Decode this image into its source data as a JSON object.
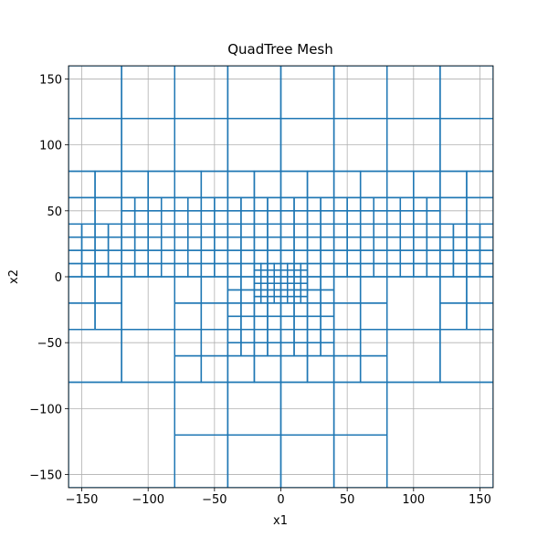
{
  "chart_data": {
    "type": "mesh",
    "title": "QuadTree Mesh",
    "xlabel": "x1",
    "ylabel": "x2",
    "color": "#1f77b4",
    "grid": true,
    "xlim": [
      -160,
      160
    ],
    "ylim": [
      -160,
      160
    ],
    "xticks": [
      {
        "value": -150,
        "label": "−150"
      },
      {
        "value": -100,
        "label": "−100"
      },
      {
        "value": -50,
        "label": "−50"
      },
      0,
      50,
      100,
      150
    ],
    "yticks": [
      {
        "value": -150,
        "label": "−150"
      },
      {
        "value": -100,
        "label": "−100"
      },
      {
        "value": -50,
        "label": "−50"
      },
      0,
      50,
      100,
      150
    ],
    "cells": [
      [
        -160,
        120,
        40
      ],
      [
        -120,
        120,
        40
      ],
      [
        -80,
        120,
        40
      ],
      [
        -40,
        120,
        40
      ],
      [
        0,
        120,
        40
      ],
      [
        40,
        120,
        40
      ],
      [
        80,
        120,
        40
      ],
      [
        120,
        120,
        40
      ],
      [
        -160,
        80,
        40
      ],
      [
        -120,
        80,
        40
      ],
      [
        -80,
        80,
        40
      ],
      [
        -40,
        80,
        40
      ],
      [
        0,
        80,
        40
      ],
      [
        40,
        80,
        40
      ],
      [
        80,
        80,
        40
      ],
      [
        120,
        80,
        40
      ],
      [
        -160,
        60,
        20
      ],
      [
        -140,
        60,
        20
      ],
      [
        -120,
        60,
        20
      ],
      [
        -100,
        60,
        20
      ],
      [
        -80,
        60,
        20
      ],
      [
        -60,
        60,
        20
      ],
      [
        -40,
        60,
        20
      ],
      [
        -20,
        60,
        20
      ],
      [
        0,
        60,
        20
      ],
      [
        20,
        60,
        20
      ],
      [
        40,
        60,
        20
      ],
      [
        60,
        60,
        20
      ],
      [
        80,
        60,
        20
      ],
      [
        100,
        60,
        20
      ],
      [
        120,
        60,
        20
      ],
      [
        140,
        60,
        20
      ],
      [
        -160,
        40,
        20
      ],
      [
        -140,
        40,
        20
      ],
      [
        120,
        40,
        20
      ],
      [
        140,
        40,
        20
      ],
      [
        -120,
        50,
        10
      ],
      [
        -110,
        50,
        10
      ],
      [
        -100,
        50,
        10
      ],
      [
        -90,
        50,
        10
      ],
      [
        -80,
        50,
        10
      ],
      [
        -70,
        50,
        10
      ],
      [
        -60,
        50,
        10
      ],
      [
        -50,
        50,
        10
      ],
      [
        -40,
        50,
        10
      ],
      [
        -30,
        50,
        10
      ],
      [
        -20,
        50,
        10
      ],
      [
        -10,
        50,
        10
      ],
      [
        0,
        50,
        10
      ],
      [
        10,
        50,
        10
      ],
      [
        20,
        50,
        10
      ],
      [
        30,
        50,
        10
      ],
      [
        40,
        50,
        10
      ],
      [
        50,
        50,
        10
      ],
      [
        60,
        50,
        10
      ],
      [
        70,
        50,
        10
      ],
      [
        80,
        50,
        10
      ],
      [
        90,
        50,
        10
      ],
      [
        100,
        50,
        10
      ],
      [
        110,
        50,
        10
      ],
      [
        -120,
        40,
        10
      ],
      [
        -110,
        40,
        10
      ],
      [
        -100,
        40,
        10
      ],
      [
        -90,
        40,
        10
      ],
      [
        -80,
        40,
        10
      ],
      [
        -70,
        40,
        10
      ],
      [
        -60,
        40,
        10
      ],
      [
        -50,
        40,
        10
      ],
      [
        -40,
        40,
        10
      ],
      [
        -30,
        40,
        10
      ],
      [
        -20,
        40,
        10
      ],
      [
        -10,
        40,
        10
      ],
      [
        0,
        40,
        10
      ],
      [
        10,
        40,
        10
      ],
      [
        20,
        40,
        10
      ],
      [
        30,
        40,
        10
      ],
      [
        40,
        40,
        10
      ],
      [
        50,
        40,
        10
      ],
      [
        60,
        40,
        10
      ],
      [
        70,
        40,
        10
      ],
      [
        80,
        40,
        10
      ],
      [
        90,
        40,
        10
      ],
      [
        100,
        40,
        10
      ],
      [
        110,
        40,
        10
      ],
      [
        -160,
        30,
        10
      ],
      [
        -150,
        30,
        10
      ],
      [
        -140,
        30,
        10
      ],
      [
        -130,
        30,
        10
      ],
      [
        -120,
        30,
        10
      ],
      [
        -110,
        30,
        10
      ],
      [
        -100,
        30,
        10
      ],
      [
        -90,
        30,
        10
      ],
      [
        -80,
        30,
        10
      ],
      [
        -70,
        30,
        10
      ],
      [
        -60,
        30,
        10
      ],
      [
        -50,
        30,
        10
      ],
      [
        -40,
        30,
        10
      ],
      [
        -30,
        30,
        10
      ],
      [
        -20,
        30,
        10
      ],
      [
        -10,
        30,
        10
      ],
      [
        0,
        30,
        10
      ],
      [
        10,
        30,
        10
      ],
      [
        20,
        30,
        10
      ],
      [
        30,
        30,
        10
      ],
      [
        40,
        30,
        10
      ],
      [
        50,
        30,
        10
      ],
      [
        60,
        30,
        10
      ],
      [
        70,
        30,
        10
      ],
      [
        80,
        30,
        10
      ],
      [
        90,
        30,
        10
      ],
      [
        100,
        30,
        10
      ],
      [
        110,
        30,
        10
      ],
      [
        120,
        30,
        10
      ],
      [
        130,
        30,
        10
      ],
      [
        140,
        30,
        10
      ],
      [
        150,
        30,
        10
      ],
      [
        -160,
        20,
        10
      ],
      [
        -150,
        20,
        10
      ],
      [
        -140,
        20,
        10
      ],
      [
        -130,
        20,
        10
      ],
      [
        -120,
        20,
        10
      ],
      [
        -110,
        20,
        10
      ],
      [
        -100,
        20,
        10
      ],
      [
        -90,
        20,
        10
      ],
      [
        -80,
        20,
        10
      ],
      [
        -70,
        20,
        10
      ],
      [
        -60,
        20,
        10
      ],
      [
        -50,
        20,
        10
      ],
      [
        -40,
        20,
        10
      ],
      [
        -30,
        20,
        10
      ],
      [
        -20,
        20,
        10
      ],
      [
        -10,
        20,
        10
      ],
      [
        0,
        20,
        10
      ],
      [
        10,
        20,
        10
      ],
      [
        20,
        20,
        10
      ],
      [
        30,
        20,
        10
      ],
      [
        40,
        20,
        10
      ],
      [
        50,
        20,
        10
      ],
      [
        60,
        20,
        10
      ],
      [
        70,
        20,
        10
      ],
      [
        80,
        20,
        10
      ],
      [
        90,
        20,
        10
      ],
      [
        100,
        20,
        10
      ],
      [
        110,
        20,
        10
      ],
      [
        120,
        20,
        10
      ],
      [
        130,
        20,
        10
      ],
      [
        140,
        20,
        10
      ],
      [
        150,
        20,
        10
      ],
      [
        -160,
        10,
        10
      ],
      [
        -150,
        10,
        10
      ],
      [
        -140,
        10,
        10
      ],
      [
        -130,
        10,
        10
      ],
      [
        -120,
        10,
        10
      ],
      [
        -110,
        10,
        10
      ],
      [
        -100,
        10,
        10
      ],
      [
        -90,
        10,
        10
      ],
      [
        -80,
        10,
        10
      ],
      [
        -70,
        10,
        10
      ],
      [
        -60,
        10,
        10
      ],
      [
        -50,
        10,
        10
      ],
      [
        -40,
        10,
        10
      ],
      [
        -30,
        10,
        10
      ],
      [
        -20,
        10,
        10
      ],
      [
        -10,
        10,
        10
      ],
      [
        0,
        10,
        10
      ],
      [
        10,
        10,
        10
      ],
      [
        20,
        10,
        10
      ],
      [
        30,
        10,
        10
      ],
      [
        40,
        10,
        10
      ],
      [
        50,
        10,
        10
      ],
      [
        60,
        10,
        10
      ],
      [
        70,
        10,
        10
      ],
      [
        80,
        10,
        10
      ],
      [
        90,
        10,
        10
      ],
      [
        100,
        10,
        10
      ],
      [
        110,
        10,
        10
      ],
      [
        120,
        10,
        10
      ],
      [
        130,
        10,
        10
      ],
      [
        140,
        10,
        10
      ],
      [
        150,
        10,
        10
      ],
      [
        -160,
        0,
        10
      ],
      [
        -150,
        0,
        10
      ],
      [
        -140,
        0,
        10
      ],
      [
        -130,
        0,
        10
      ],
      [
        -120,
        0,
        10
      ],
      [
        -110,
        0,
        10
      ],
      [
        -100,
        0,
        10
      ],
      [
        -90,
        0,
        10
      ],
      [
        -80,
        0,
        10
      ],
      [
        -70,
        0,
        10
      ],
      [
        -60,
        0,
        10
      ],
      [
        -50,
        0,
        10
      ],
      [
        -40,
        0,
        10
      ],
      [
        -30,
        0,
        10
      ],
      [
        20,
        0,
        10
      ],
      [
        30,
        0,
        10
      ],
      [
        40,
        0,
        10
      ],
      [
        50,
        0,
        10
      ],
      [
        60,
        0,
        10
      ],
      [
        70,
        0,
        10
      ],
      [
        80,
        0,
        10
      ],
      [
        90,
        0,
        10
      ],
      [
        100,
        0,
        10
      ],
      [
        110,
        0,
        10
      ],
      [
        120,
        0,
        10
      ],
      [
        130,
        0,
        10
      ],
      [
        140,
        0,
        10
      ],
      [
        150,
        0,
        10
      ],
      [
        -20,
        5,
        5
      ],
      [
        -15,
        5,
        5
      ],
      [
        -10,
        5,
        5
      ],
      [
        -5,
        5,
        5
      ],
      [
        0,
        5,
        5
      ],
      [
        5,
        5,
        5
      ],
      [
        10,
        5,
        5
      ],
      [
        15,
        5,
        5
      ],
      [
        -20,
        0,
        5
      ],
      [
        -15,
        0,
        5
      ],
      [
        -10,
        0,
        5
      ],
      [
        -5,
        0,
        5
      ],
      [
        0,
        0,
        5
      ],
      [
        5,
        0,
        5
      ],
      [
        10,
        0,
        5
      ],
      [
        15,
        0,
        5
      ],
      [
        -160,
        -40,
        20
      ],
      [
        -140,
        -40,
        20
      ],
      [
        -160,
        -20,
        20
      ],
      [
        -140,
        -20,
        20
      ],
      [
        -120,
        -40,
        40
      ],
      [
        80,
        -40,
        40
      ],
      [
        120,
        -40,
        20
      ],
      [
        140,
        -40,
        20
      ],
      [
        120,
        -20,
        20
      ],
      [
        140,
        -20,
        20
      ],
      [
        -80,
        -40,
        20
      ],
      [
        -60,
        -40,
        20
      ],
      [
        40,
        -40,
        20
      ],
      [
        60,
        -40,
        20
      ],
      [
        -80,
        -20,
        20
      ],
      [
        -60,
        -20,
        20
      ],
      [
        40,
        -20,
        20
      ],
      [
        60,
        -20,
        20
      ],
      [
        -40,
        -40,
        10
      ],
      [
        -30,
        -40,
        10
      ],
      [
        20,
        -40,
        10
      ],
      [
        30,
        -40,
        10
      ],
      [
        -40,
        -30,
        10
      ],
      [
        -30,
        -30,
        10
      ],
      [
        20,
        -30,
        10
      ],
      [
        30,
        -30,
        10
      ],
      [
        -40,
        -20,
        10
      ],
      [
        -30,
        -20,
        10
      ],
      [
        20,
        -20,
        10
      ],
      [
        30,
        -20,
        10
      ],
      [
        -40,
        -10,
        10
      ],
      [
        -30,
        -10,
        10
      ],
      [
        20,
        -10,
        10
      ],
      [
        30,
        -10,
        10
      ],
      [
        -20,
        -40,
        10
      ],
      [
        -10,
        -40,
        10
      ],
      [
        0,
        -40,
        10
      ],
      [
        10,
        -40,
        10
      ],
      [
        -20,
        -30,
        10
      ],
      [
        -10,
        -30,
        10
      ],
      [
        0,
        -30,
        10
      ],
      [
        10,
        -30,
        10
      ],
      [
        -20,
        -20,
        5
      ],
      [
        -15,
        -20,
        5
      ],
      [
        -10,
        -20,
        5
      ],
      [
        -5,
        -20,
        5
      ],
      [
        0,
        -20,
        5
      ],
      [
        5,
        -20,
        5
      ],
      [
        10,
        -20,
        5
      ],
      [
        15,
        -20,
        5
      ],
      [
        -20,
        -15,
        5
      ],
      [
        -15,
        -15,
        5
      ],
      [
        -10,
        -15,
        5
      ],
      [
        -5,
        -15,
        5
      ],
      [
        0,
        -15,
        5
      ],
      [
        5,
        -15,
        5
      ],
      [
        10,
        -15,
        5
      ],
      [
        15,
        -15,
        5
      ],
      [
        -20,
        -10,
        5
      ],
      [
        -15,
        -10,
        5
      ],
      [
        -10,
        -10,
        5
      ],
      [
        -5,
        -10,
        5
      ],
      [
        0,
        -10,
        5
      ],
      [
        5,
        -10,
        5
      ],
      [
        10,
        -10,
        5
      ],
      [
        15,
        -10,
        5
      ],
      [
        -20,
        -5,
        5
      ],
      [
        -15,
        -5,
        5
      ],
      [
        -10,
        -5,
        5
      ],
      [
        -5,
        -5,
        5
      ],
      [
        0,
        -5,
        5
      ],
      [
        5,
        -5,
        5
      ],
      [
        10,
        -5,
        5
      ],
      [
        15,
        -5,
        5
      ],
      [
        -160,
        -80,
        40
      ],
      [
        -120,
        -80,
        40
      ],
      [
        80,
        -80,
        40
      ],
      [
        120,
        -80,
        40
      ],
      [
        -80,
        -80,
        20
      ],
      [
        -60,
        -80,
        20
      ],
      [
        -40,
        -80,
        20
      ],
      [
        -20,
        -80,
        20
      ],
      [
        0,
        -80,
        20
      ],
      [
        20,
        -80,
        20
      ],
      [
        40,
        -80,
        20
      ],
      [
        60,
        -80,
        20
      ],
      [
        -80,
        -60,
        20
      ],
      [
        -60,
        -60,
        20
      ],
      [
        40,
        -60,
        20
      ],
      [
        60,
        -60,
        20
      ],
      [
        -40,
        -60,
        10
      ],
      [
        -30,
        -60,
        10
      ],
      [
        -20,
        -60,
        10
      ],
      [
        -10,
        -60,
        10
      ],
      [
        0,
        -60,
        10
      ],
      [
        10,
        -60,
        10
      ],
      [
        20,
        -60,
        10
      ],
      [
        30,
        -60,
        10
      ],
      [
        -40,
        -50,
        10
      ],
      [
        -30,
        -50,
        10
      ],
      [
        -20,
        -50,
        10
      ],
      [
        -10,
        -50,
        10
      ],
      [
        0,
        -50,
        10
      ],
      [
        10,
        -50,
        10
      ],
      [
        20,
        -50,
        10
      ],
      [
        30,
        -50,
        10
      ],
      [
        -160,
        -160,
        80
      ],
      [
        80,
        -160,
        80
      ],
      [
        -80,
        -160,
        40
      ],
      [
        -40,
        -160,
        40
      ],
      [
        0,
        -160,
        40
      ],
      [
        40,
        -160,
        40
      ],
      [
        -80,
        -120,
        40
      ],
      [
        -40,
        -120,
        40
      ],
      [
        0,
        -120,
        40
      ],
      [
        40,
        -120,
        40
      ]
    ]
  }
}
